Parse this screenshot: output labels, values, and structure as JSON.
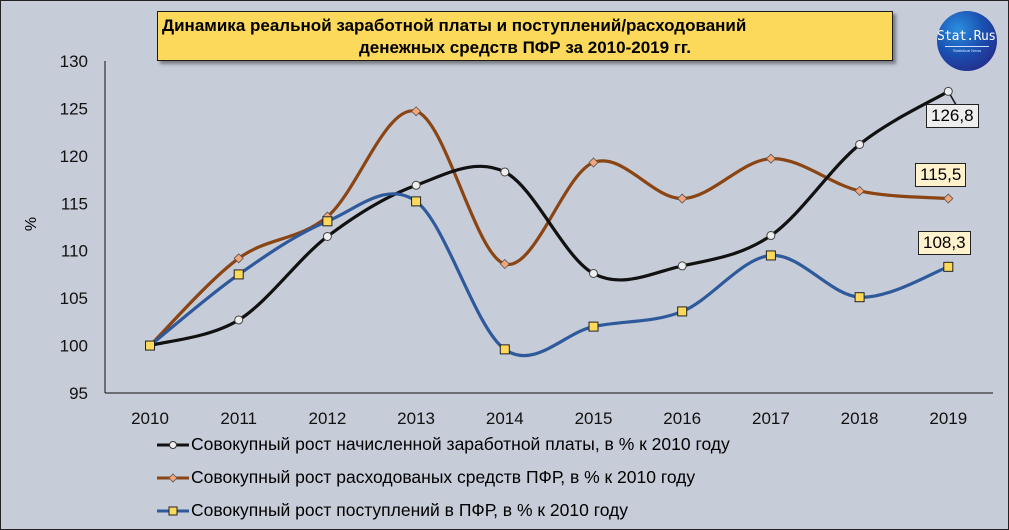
{
  "chart_data": {
    "type": "line",
    "title": "Динамика реальной заработной платы и поступлений/расходований денежных средств ПФР за 2010-2019 гг.",
    "title_lines": [
      "Динамика реальной заработной платы и поступлений/расходований",
      "денежных средств ПФР за 2010-2019 гг."
    ],
    "xlabel": "",
    "ylabel": "%",
    "ylim": [
      95,
      130
    ],
    "yticks": [
      95,
      100,
      105,
      110,
      115,
      120,
      125,
      130
    ],
    "categories": [
      "2010",
      "2011",
      "2012",
      "2013",
      "2014",
      "2015",
      "2016",
      "2017",
      "2018",
      "2019"
    ],
    "grid": false,
    "legend_position": "bottom",
    "smoothed": true,
    "series": [
      {
        "name": "Совокупный  рост начисленной  заработной платы, в % к 2010 году",
        "color": "#111111",
        "marker": "circle",
        "values": [
          100,
          102.7,
          111.5,
          116.9,
          118.3,
          107.6,
          108.4,
          111.6,
          121.2,
          126.8
        ],
        "end_label": "126,8"
      },
      {
        "name": "Совокупный  рост расходованых средств ПФР, в % к 2010 году",
        "color": "#8b4513",
        "marker": "diamond",
        "values": [
          100,
          109.2,
          113.6,
          124.7,
          108.6,
          119.3,
          115.5,
          119.7,
          116.3,
          115.5
        ],
        "end_label": "115,5"
      },
      {
        "name": "Совокупный  рост поступлений  в ПФР, в % к 2010 году",
        "color": "#2e5a9c",
        "marker": "square",
        "values": [
          100,
          107.5,
          113.1,
          115.2,
          99.6,
          102.0,
          103.6,
          109.5,
          105.1,
          108.3
        ],
        "end_label": "108,3"
      }
    ]
  },
  "header": {
    "title_line1": "Динамика реальной заработной платы и поступлений/расходований",
    "title_line2": "денежных средств ПФР за 2010-2019 гг.",
    "logo_text": "Stat.Russ",
    "logo_subtext": "Statistical   News"
  },
  "axis": {
    "ylabel": "%"
  },
  "labels": {
    "wage_end": "126,8",
    "spend_end": "115,5",
    "income_end": "108,3"
  },
  "legend": {
    "items": [
      {
        "label": "Совокупный  рост начисленной  заработной платы, в % к 2010 году"
      },
      {
        "label": "Совокупный  рост расходованых средств ПФР, в % к 2010 году"
      },
      {
        "label": "Совокупный  рост поступлений  в ПФР, в % к 2010 году"
      }
    ]
  }
}
